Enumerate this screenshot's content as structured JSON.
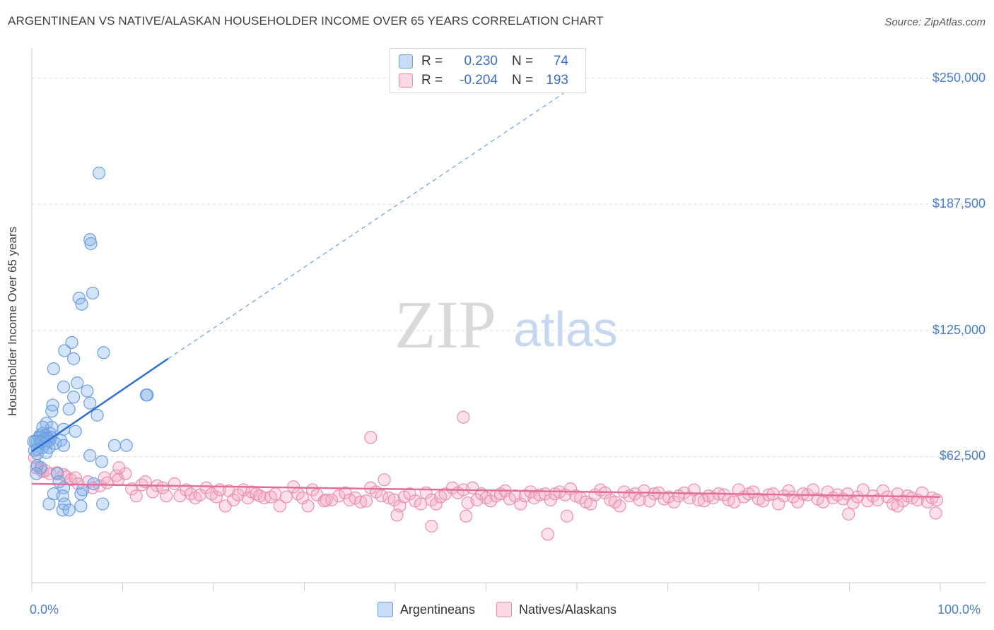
{
  "title": "ARGENTINEAN VS NATIVE/ALASKAN HOUSEHOLDER INCOME OVER 65 YEARS CORRELATION CHART",
  "source": "Source: ZipAtlas.com",
  "watermark": {
    "zip": "ZIP",
    "atlas": "atlas"
  },
  "colors": {
    "blue": "#6b9fe0",
    "blue_fill": "rgba(133,178,235,0.35)",
    "blue_line": "#2f6fd0",
    "pink": "#e98fae",
    "pink_fill": "rgba(245,170,196,0.35)",
    "pink_line": "#e06f9a",
    "tick_text": "#4a7ec9",
    "grid": "#dddddd"
  },
  "stats": {
    "blue": {
      "r_label": "R =",
      "r_value": "0.230",
      "n_label": "N =",
      "n_value": "74"
    },
    "pink": {
      "r_label": "R =",
      "r_value": "-0.204",
      "n_label": "N =",
      "n_value": "193"
    }
  },
  "legend": {
    "blue": "Argentineans",
    "pink": "Natives/Alaskans"
  },
  "chart_data": {
    "type": "scatter",
    "title": "ARGENTINEAN VS NATIVE/ALASKAN HOUSEHOLDER INCOME OVER 65 YEARS CORRELATION CHART",
    "xlabel": "",
    "ylabel": "Householder Income Over 65 years",
    "xlim": [
      0,
      100
    ],
    "ylim": [
      0,
      262500
    ],
    "x_tick_labels": [
      "0.0%",
      "100.0%"
    ],
    "y_ticks": [
      62500,
      125000,
      187500,
      250000
    ],
    "y_tick_labels": [
      "$62,500",
      "$125,000",
      "$187,500",
      "$250,000"
    ],
    "series": [
      {
        "name": "Argentineans",
        "r": 0.23,
        "n": 74,
        "trend": {
          "x": [
            0,
            15
          ],
          "y": [
            65000,
            111000
          ],
          "extended_to": [
            61,
            250000
          ]
        },
        "points": [
          [
            7.4,
            203000
          ],
          [
            6.4,
            170000
          ],
          [
            6.5,
            168000
          ],
          [
            6.7,
            143500
          ],
          [
            5.2,
            141000
          ],
          [
            5.5,
            138000
          ],
          [
            4.4,
            119000
          ],
          [
            3.6,
            115000
          ],
          [
            7.9,
            114000
          ],
          [
            4.6,
            111000
          ],
          [
            2.4,
            106000
          ],
          [
            5.0,
            99000
          ],
          [
            3.5,
            97000
          ],
          [
            6.1,
            95000
          ],
          [
            12.7,
            93000
          ],
          [
            12.6,
            93000
          ],
          [
            4.6,
            92000
          ],
          [
            6.4,
            89000
          ],
          [
            2.3,
            88000
          ],
          [
            4.1,
            86000
          ],
          [
            2.2,
            85000
          ],
          [
            7.2,
            83000
          ],
          [
            1.6,
            79000
          ],
          [
            2.2,
            77000
          ],
          [
            1.2,
            77000
          ],
          [
            3.5,
            76000
          ],
          [
            4.8,
            75000
          ],
          [
            2.0,
            74000
          ],
          [
            1.2,
            74000
          ],
          [
            0.9,
            73000
          ],
          [
            1.5,
            73000
          ],
          [
            0.8,
            72000
          ],
          [
            1.0,
            72000
          ],
          [
            2.1,
            72000
          ],
          [
            1.7,
            71500
          ],
          [
            1.9,
            71000
          ],
          [
            1.3,
            71000
          ],
          [
            3.2,
            70500
          ],
          [
            0.6,
            70000
          ],
          [
            0.9,
            70000
          ],
          [
            0.2,
            70000
          ],
          [
            0.4,
            70000
          ],
          [
            1.8,
            70000
          ],
          [
            1.0,
            69500
          ],
          [
            2.6,
            69000
          ],
          [
            1.5,
            69000
          ],
          [
            3.5,
            68000
          ],
          [
            9.1,
            68000
          ],
          [
            10.4,
            68000
          ],
          [
            1.2,
            67000
          ],
          [
            1.9,
            67000
          ],
          [
            0.6,
            66000
          ],
          [
            0.3,
            65500
          ],
          [
            1.6,
            64500
          ],
          [
            0.6,
            64000
          ],
          [
            6.4,
            63000
          ],
          [
            7.7,
            60000
          ],
          [
            0.6,
            58000
          ],
          [
            1.0,
            57000
          ],
          [
            0.5,
            54000
          ],
          [
            2.8,
            54000
          ],
          [
            3.0,
            50000
          ],
          [
            6.8,
            49000
          ],
          [
            3.5,
            47000
          ],
          [
            5.6,
            46000
          ],
          [
            5.4,
            44000
          ],
          [
            2.4,
            44000
          ],
          [
            3.4,
            43000
          ],
          [
            3.6,
            39000
          ],
          [
            7.8,
            39000
          ],
          [
            1.9,
            39000
          ],
          [
            5.4,
            38000
          ],
          [
            3.4,
            36000
          ],
          [
            4.1,
            36000
          ]
        ]
      },
      {
        "name": "Natives/Alaskans",
        "r": -0.204,
        "n": 193,
        "trend": {
          "x": [
            0,
            100
          ],
          "y": [
            49000,
            42500
          ]
        },
        "points": [
          [
            0.3,
            62000
          ],
          [
            0.5,
            57000
          ],
          [
            1.0,
            56000
          ],
          [
            1.2,
            55000
          ],
          [
            1.5,
            55500
          ],
          [
            2.0,
            54000
          ],
          [
            2.8,
            54500
          ],
          [
            3.5,
            53500
          ],
          [
            3.8,
            52500
          ],
          [
            4.3,
            51000
          ],
          [
            4.8,
            52000
          ],
          [
            5.1,
            49000
          ],
          [
            6.2,
            50000
          ],
          [
            6.7,
            47000
          ],
          [
            7.5,
            48000
          ],
          [
            8.0,
            52000
          ],
          [
            8.3,
            49500
          ],
          [
            9.3,
            53000
          ],
          [
            9.5,
            51000
          ],
          [
            10.3,
            54000
          ],
          [
            11.0,
            46500
          ],
          [
            11.5,
            43000
          ],
          [
            12.1,
            48500
          ],
          [
            12.5,
            50000
          ],
          [
            13.3,
            45000
          ],
          [
            13.8,
            48000
          ],
          [
            14.4,
            47000
          ],
          [
            14.8,
            43000
          ],
          [
            15.7,
            49000
          ],
          [
            16.3,
            43000
          ],
          [
            17.0,
            46000
          ],
          [
            17.5,
            44000
          ],
          [
            18.0,
            42000
          ],
          [
            18.5,
            43500
          ],
          [
            19.2,
            47000
          ],
          [
            19.8,
            44000
          ],
          [
            20.3,
            42500
          ],
          [
            20.7,
            46000
          ],
          [
            21.3,
            38000
          ],
          [
            21.7,
            45500
          ],
          [
            22.2,
            41000
          ],
          [
            22.7,
            43500
          ],
          [
            23.3,
            46000
          ],
          [
            23.8,
            42000
          ],
          [
            24.2,
            45000
          ],
          [
            24.7,
            44000
          ],
          [
            25.1,
            43000
          ],
          [
            25.6,
            42000
          ],
          [
            26.3,
            42500
          ],
          [
            26.8,
            44000
          ],
          [
            27.3,
            38000
          ],
          [
            28.0,
            42500
          ],
          [
            28.8,
            47500
          ],
          [
            29.3,
            44000
          ],
          [
            29.8,
            42000
          ],
          [
            30.4,
            38000
          ],
          [
            30.9,
            46000
          ],
          [
            31.4,
            43500
          ],
          [
            32.2,
            40500
          ],
          [
            33.0,
            41000
          ],
          [
            33.8,
            43000
          ],
          [
            34.5,
            44500
          ],
          [
            35.0,
            41000
          ],
          [
            35.6,
            42000
          ],
          [
            36.2,
            40000
          ],
          [
            36.8,
            40500
          ],
          [
            37.3,
            47000
          ],
          [
            37.9,
            45000
          ],
          [
            38.5,
            43000
          ],
          [
            38.8,
            51000
          ],
          [
            39.3,
            42000
          ],
          [
            39.9,
            41000
          ],
          [
            40.5,
            38000
          ],
          [
            41.0,
            42500
          ],
          [
            41.6,
            44000
          ],
          [
            42.2,
            40500
          ],
          [
            42.8,
            39000
          ],
          [
            43.4,
            44500
          ],
          [
            44.0,
            41000
          ],
          [
            44.5,
            39000
          ],
          [
            45.0,
            42500
          ],
          [
            45.5,
            44000
          ],
          [
            46.3,
            47000
          ],
          [
            46.9,
            44500
          ],
          [
            47.5,
            46000
          ],
          [
            48.0,
            39500
          ],
          [
            48.5,
            47000
          ],
          [
            49.0,
            41000
          ],
          [
            49.5,
            44000
          ],
          [
            50.0,
            42000
          ],
          [
            50.5,
            40500
          ],
          [
            51.1,
            43000
          ],
          [
            51.6,
            44000
          ],
          [
            52.1,
            45500
          ],
          [
            52.6,
            41500
          ],
          [
            53.2,
            43000
          ],
          [
            53.8,
            39000
          ],
          [
            54.3,
            43000
          ],
          [
            54.9,
            45000
          ],
          [
            55.3,
            42000
          ],
          [
            55.9,
            43500
          ],
          [
            56.5,
            44000
          ],
          [
            57.1,
            41000
          ],
          [
            57.6,
            44000
          ],
          [
            58.1,
            45000
          ],
          [
            58.7,
            43500
          ],
          [
            59.3,
            46500
          ],
          [
            59.9,
            43000
          ],
          [
            60.4,
            42000
          ],
          [
            61.0,
            40000
          ],
          [
            61.5,
            39000
          ],
          [
            62.0,
            43500
          ],
          [
            62.6,
            46000
          ],
          [
            63.1,
            44500
          ],
          [
            63.7,
            41000
          ],
          [
            64.2,
            40000
          ],
          [
            64.7,
            38000
          ],
          [
            65.2,
            45000
          ],
          [
            65.8,
            43000
          ],
          [
            66.4,
            44000
          ],
          [
            66.9,
            41000
          ],
          [
            67.4,
            45500
          ],
          [
            68.0,
            40500
          ],
          [
            68.5,
            44000
          ],
          [
            69.0,
            44500
          ],
          [
            69.6,
            41500
          ],
          [
            70.1,
            42500
          ],
          [
            70.7,
            40000
          ],
          [
            71.2,
            43000
          ],
          [
            71.8,
            44500
          ],
          [
            72.4,
            42000
          ],
          [
            72.9,
            46000
          ],
          [
            73.4,
            41000
          ],
          [
            74.0,
            40500
          ],
          [
            74.5,
            43000
          ],
          [
            75.0,
            42000
          ],
          [
            75.6,
            44000
          ],
          [
            76.2,
            43500
          ],
          [
            76.7,
            41000
          ],
          [
            77.3,
            40000
          ],
          [
            77.8,
            46000
          ],
          [
            78.4,
            42500
          ],
          [
            78.9,
            44000
          ],
          [
            79.4,
            45000
          ],
          [
            80.0,
            41500
          ],
          [
            80.5,
            40500
          ],
          [
            81.1,
            43500
          ],
          [
            81.6,
            44000
          ],
          [
            82.2,
            39000
          ],
          [
            82.8,
            43000
          ],
          [
            83.3,
            45500
          ],
          [
            83.8,
            42500
          ],
          [
            84.3,
            40000
          ],
          [
            84.9,
            44000
          ],
          [
            85.4,
            43500
          ],
          [
            86.0,
            46000
          ],
          [
            86.5,
            41500
          ],
          [
            87.1,
            40000
          ],
          [
            87.6,
            45000
          ],
          [
            88.2,
            42000
          ],
          [
            88.7,
            43500
          ],
          [
            89.3,
            41500
          ],
          [
            89.8,
            44000
          ],
          [
            90.4,
            39500
          ],
          [
            90.9,
            42500
          ],
          [
            91.5,
            46000
          ],
          [
            92.0,
            40500
          ],
          [
            92.6,
            43000
          ],
          [
            93.1,
            41000
          ],
          [
            93.7,
            45500
          ],
          [
            94.2,
            42500
          ],
          [
            94.8,
            39000
          ],
          [
            95.3,
            44000
          ],
          [
            95.9,
            40500
          ],
          [
            96.4,
            43000
          ],
          [
            96.9,
            42000
          ],
          [
            97.5,
            41000
          ],
          [
            98.0,
            44500
          ],
          [
            98.6,
            40000
          ],
          [
            99.1,
            42000
          ],
          [
            99.6,
            41000
          ],
          [
            47.5,
            82000
          ],
          [
            37.3,
            72000
          ],
          [
            47.8,
            33000
          ],
          [
            40.2,
            33500
          ],
          [
            44.0,
            28000
          ],
          [
            56.8,
            24000
          ],
          [
            58.9,
            33000
          ],
          [
            89.9,
            34000
          ],
          [
            95.3,
            38000
          ],
          [
            99.5,
            34500
          ],
          [
            9.6,
            57000
          ],
          [
            32.4,
            41000
          ]
        ]
      }
    ]
  }
}
